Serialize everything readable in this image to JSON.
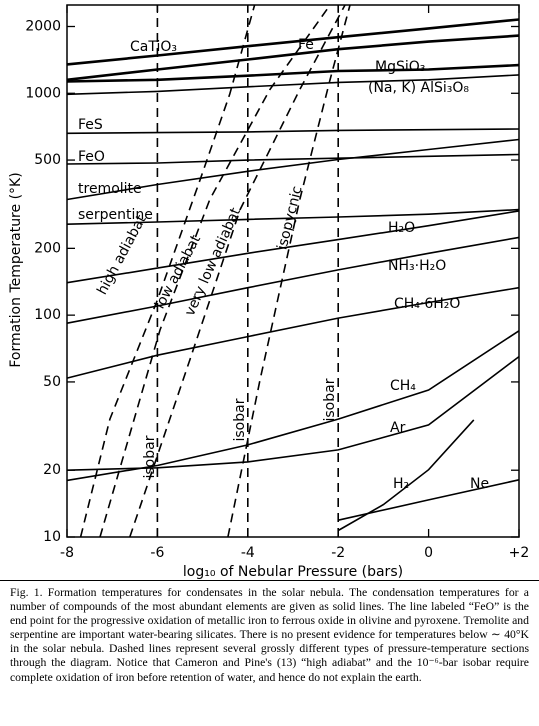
{
  "chart_data": {
    "type": "line",
    "xlabel": "log₁₀ of Nebular Pressure (bars)",
    "ylabel": "Formation Temperature (°K)",
    "ylog": true,
    "grid": false,
    "xlim": [
      -8,
      2
    ],
    "ylim": [
      10,
      2500
    ],
    "xticks": [
      -8,
      -6,
      -4,
      -2,
      0,
      {
        "value": 2,
        "label": "+2"
      }
    ],
    "yticks": [
      10,
      20,
      50,
      100,
      200,
      500,
      1000,
      2000
    ],
    "x": [
      -8,
      -6,
      -4,
      -2,
      0,
      2
    ],
    "series": [
      {
        "name": "CaTiO₃",
        "color": "#000000",
        "values": [
          1350,
          1480,
          1630,
          1790,
          1960,
          2150
        ]
      },
      {
        "name": "Fe",
        "color": "#000000",
        "values": [
          1150,
          1280,
          1420,
          1580,
          1710,
          1820
        ]
      },
      {
        "name": "MgSiO₃",
        "color": "#000000",
        "values": [
          1130,
          1150,
          1200,
          1260,
          1280,
          1340
        ]
      },
      {
        "name": "(Na, K) AlSi₃O₈",
        "color": "#000000",
        "values": [
          990,
          1020,
          1070,
          1120,
          1150,
          1210
        ]
      },
      {
        "name": "FeS",
        "color": "#000000",
        "values": [
          660,
          665,
          670,
          680,
          685,
          690
        ]
      },
      {
        "name": "FeO",
        "color": "#000000",
        "values": [
          480,
          485,
          500,
          510,
          520,
          530
        ]
      },
      {
        "name": "tremolite",
        "color": "#000000",
        "values": [
          332,
          388,
          445,
          503,
          558,
          619
        ]
      },
      {
        "name": "serpentine",
        "color": "#000000",
        "values": [
          257,
          263,
          270,
          277,
          285,
          299
        ]
      },
      {
        "name": "H₂O",
        "color": "#000000",
        "values": [
          140,
          163,
          190,
          219,
          253,
          295
        ]
      },
      {
        "name": "NH₃·H₂O",
        "color": "#000000",
        "values": [
          92,
          110,
          133,
          160,
          190,
          224
        ]
      },
      {
        "name": "CH₄·6H₂O",
        "color": "#000000",
        "values": [
          52,
          66,
          80,
          97,
          114,
          133
        ]
      },
      {
        "name": "CH₄",
        "color": "#000000",
        "values": [
          18,
          21,
          26,
          34,
          46,
          85
        ]
      },
      {
        "name": "Ar",
        "color": "#000000",
        "values": [
          20,
          20.5,
          21.8,
          24.7,
          32,
          65
        ]
      },
      {
        "name": "H₂",
        "color": "#000000",
        "x": [
          -2,
          -1,
          0,
          1
        ],
        "values": [
          10.7,
          14,
          20.1,
          33.7
        ]
      },
      {
        "name": "Ne",
        "color": "#000000",
        "x": [
          -2,
          0,
          2
        ],
        "values": [
          11.9,
          14.7,
          18.1
        ]
      },
      {
        "name": "high adiabat",
        "color": "#000000",
        "dash": true,
        "x": [
          -7.7,
          -7.05,
          -6,
          -5.05,
          -4.4,
          -3.85
        ],
        "values": [
          10,
          34,
          117,
          410,
          990,
          2500
        ]
      },
      {
        "name": "low adiabat",
        "color": "#000000",
        "dash": true,
        "x": [
          -7.27,
          -5.94,
          -4.84,
          -3.51,
          -2.18
        ],
        "values": [
          10,
          86,
          332,
          1040,
          2500
        ]
      },
      {
        "name": "very low adiabat",
        "color": "#000000",
        "dash": true,
        "x": [
          -6.61,
          -5.28,
          -4.17,
          -2.85,
          -1.85
        ],
        "values": [
          10,
          63,
          299,
          1040,
          2500
        ]
      },
      {
        "name": "isopycnic",
        "color": "#000000",
        "dash": true,
        "x": [
          -4.44,
          -3.73,
          -2.85,
          -2.18,
          -1.74
        ],
        "values": [
          10,
          51,
          332,
          1154,
          2500
        ]
      },
      {
        "name": "isobar",
        "color": "#000000",
        "dash": true,
        "x": [
          -6,
          -6
        ],
        "values": [
          10,
          2500
        ]
      },
      {
        "name": "isobar",
        "color": "#000000",
        "dash": true,
        "x": [
          -4,
          -4
        ],
        "values": [
          10,
          2500
        ]
      },
      {
        "name": "isobar",
        "color": "#000000",
        "dash": true,
        "x": [
          -2,
          -2
        ],
        "values": [
          10,
          2500
        ]
      }
    ]
  },
  "caption": "Fig. 1. Formation temperatures for condensates in the solar nebula. The condensation temperatures for a number of compounds of the most abundant elements are given as solid lines. The line labeled “FeO” is the end point for the progressive oxidation of metallic iron to ferrous oxide in olivine and pyroxene. Tremolite and serpentine are important water-bearing silicates. There is no present evidence for temperatures below ∼ 40°K in the solar nebula. Dashed lines represent several grossly different types of pressure-temperature sections through the diagram. Notice that Cameron and Pine's (13) “high adiabat” and the 10⁻⁶-bar isobar require complete oxidation of iron before retention of water, and hence do not explain the earth."
}
